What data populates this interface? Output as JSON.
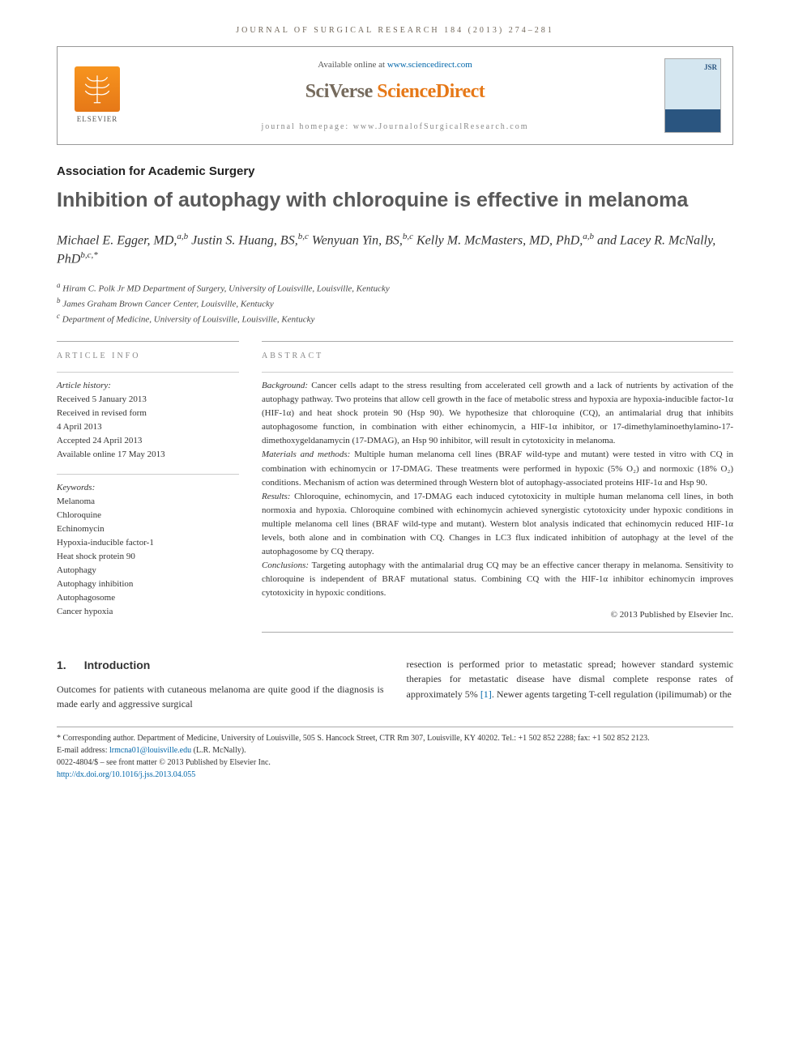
{
  "journal_header": "JOURNAL OF SURGICAL RESEARCH 184 (2013) 274–281",
  "top": {
    "available": "Available online at ",
    "available_link": "www.sciencedirect.com",
    "brand_prefix": "SciVerse ",
    "brand_suffix": "ScienceDirect",
    "homepage_label": "journal homepage: ",
    "homepage_url": "www.JournalofSurgicalResearch.com",
    "elsevier": "ELSEVIER",
    "cover_label": "JSR"
  },
  "assoc": "Association for Academic Surgery",
  "title": "Inhibition of autophagy with chloroquine is effective in melanoma",
  "authors_html": "Michael E. Egger, MD,<sup>a,b</sup> Justin S. Huang, BS,<sup>b,c</sup> Wenyuan Yin, BS,<sup>b,c</sup> Kelly M. McMasters, MD, PhD,<sup>a,b</sup> and Lacey R. McNally, PhD<sup>b,c,*</sup>",
  "affiliations": [
    {
      "sup": "a",
      "text": "Hiram C. Polk Jr MD Department of Surgery, University of Louisville, Louisville, Kentucky"
    },
    {
      "sup": "b",
      "text": "James Graham Brown Cancer Center, Louisville, Kentucky"
    },
    {
      "sup": "c",
      "text": "Department of Medicine, University of Louisville, Louisville, Kentucky"
    }
  ],
  "article_info_head": "ARTICLE INFO",
  "abstract_head": "ABSTRACT",
  "history_label": "Article history:",
  "history": [
    "Received 5 January 2013",
    "Received in revised form",
    "4 April 2013",
    "Accepted 24 April 2013",
    "Available online 17 May 2013"
  ],
  "keywords_label": "Keywords:",
  "keywords": [
    "Melanoma",
    "Chloroquine",
    "Echinomycin",
    "Hypoxia-inducible factor-1",
    "Heat shock protein 90",
    "Autophagy",
    "Autophagy inhibition",
    "Autophagosome",
    "Cancer hypoxia"
  ],
  "abstract": {
    "background_label": "Background:",
    "background": "Cancer cells adapt to the stress resulting from accelerated cell growth and a lack of nutrients by activation of the autophagy pathway. Two proteins that allow cell growth in the face of metabolic stress and hypoxia are hypoxia-inducible factor-1α (HIF-1α) and heat shock protein 90 (Hsp 90). We hypothesize that chloroquine (CQ), an antimalarial drug that inhibits autophagosome function, in combination with either echinomycin, a HIF-1α inhibitor, or 17-dimethylaminoethylamino-17-dimethoxygeldanamycin (17-DMAG), an Hsp 90 inhibitor, will result in cytotoxicity in melanoma.",
    "methods_label": "Materials and methods:",
    "methods": "Multiple human melanoma cell lines (BRAF wild-type and mutant) were tested in vitro with CQ in combination with echinomycin or 17-DMAG. These treatments were performed in hypoxic (5% O₂) and normoxic (18% O₂) conditions. Mechanism of action was determined through Western blot of autophagy-associated proteins HIF-1α and Hsp 90.",
    "results_label": "Results:",
    "results": "Chloroquine, echinomycin, and 17-DMAG each induced cytotoxicity in multiple human melanoma cell lines, in both normoxia and hypoxia. Chloroquine combined with echinomycin achieved synergistic cytotoxicity under hypoxic conditions in multiple melanoma cell lines (BRAF wild-type and mutant). Western blot analysis indicated that echinomycin reduced HIF-1α levels, both alone and in combination with CQ. Changes in LC3 flux indicated inhibition of autophagy at the level of the autophagosome by CQ therapy.",
    "conclusions_label": "Conclusions:",
    "conclusions": "Targeting autophagy with the antimalarial drug CQ may be an effective cancer therapy in melanoma. Sensitivity to chloroquine is independent of BRAF mutational status. Combining CQ with the HIF-1α inhibitor echinomycin improves cytotoxicity in hypoxic conditions."
  },
  "copyright": "© 2013 Published by Elsevier Inc.",
  "intro_head_num": "1.",
  "intro_head": "Introduction",
  "intro_left": "Outcomes for patients with cutaneous melanoma are quite good if the diagnosis is made early and aggressive surgical",
  "intro_right_pre": "resection is performed prior to metastatic spread; however standard systemic therapies for metastatic disease have dismal complete response rates of approximately 5% ",
  "intro_right_ref": "[1]",
  "intro_right_post": ". Newer agents targeting T-cell regulation (ipilimumab) or the",
  "footer": {
    "corresp": "* Corresponding author. Department of Medicine, University of Louisville, 505 S. Hancock Street, CTR Rm 307, Louisville, KY 40202. Tel.: +1 502 852 2288; fax: +1 502 852 2123.",
    "email_label": "E-mail address: ",
    "email": "lrmcna01@louisville.edu",
    "email_suffix": " (L.R. McNally).",
    "issn": "0022-4804/$ – see front matter © 2013 Published by Elsevier Inc.",
    "doi": "http://dx.doi.org/10.1016/j.jss.2013.04.055"
  }
}
